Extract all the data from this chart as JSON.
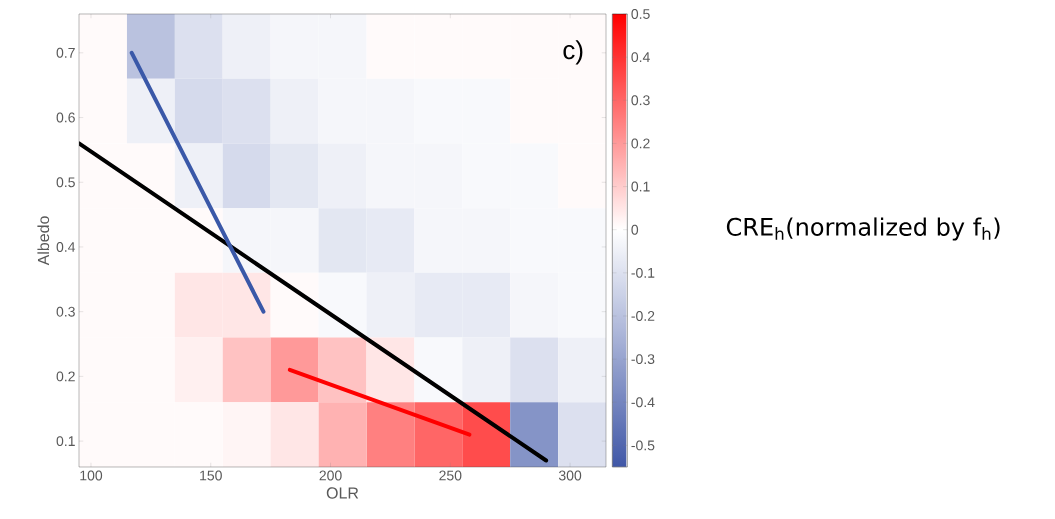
{
  "chart_data": {
    "type": "heatmap",
    "xlabel": "OLR",
    "ylabel": "Albedo",
    "clabel": "CRE$_{h}$(normalized by f$_{h}$)",
    "annotations": [
      "c)"
    ],
    "xlim": [
      95,
      315
    ],
    "ylim": [
      0.06,
      0.76
    ],
    "xticks": [
      100,
      150,
      200,
      250,
      300
    ],
    "yticks": [
      0.1,
      0.2,
      0.3,
      0.4,
      0.5,
      0.6,
      0.7
    ],
    "clim": [
      -0.55,
      0.5
    ],
    "cticks": [
      -0.5,
      -0.4,
      -0.3,
      -0.2,
      -0.1,
      0,
      0.1,
      0.2,
      0.3,
      0.4,
      0.5
    ],
    "cells": [
      [
        0.01,
        -0.2,
        -0.1,
        -0.05,
        -0.03,
        -0.03,
        0.01,
        0.01,
        0.01,
        0.01,
        0.01
      ],
      [
        0.01,
        -0.05,
        -0.12,
        -0.1,
        -0.05,
        -0.03,
        -0.03,
        -0.02,
        -0.02,
        0.01,
        0.01
      ],
      [
        0.01,
        0.01,
        -0.05,
        -0.12,
        -0.08,
        -0.05,
        -0.03,
        -0.03,
        -0.02,
        -0.02,
        0.01
      ],
      [
        0.01,
        0.01,
        0.01,
        -0.03,
        -0.03,
        -0.08,
        -0.07,
        -0.03,
        -0.03,
        -0.02,
        -0.02
      ],
      [
        0.01,
        0.01,
        0.05,
        0.05,
        0.01,
        -0.02,
        -0.05,
        -0.07,
        -0.07,
        -0.03,
        -0.02
      ],
      [
        0.01,
        0.01,
        0.03,
        0.12,
        0.2,
        0.12,
        0.05,
        -0.02,
        -0.05,
        -0.1,
        -0.05
      ],
      [
        0.01,
        0.01,
        0.01,
        0.02,
        0.05,
        0.15,
        0.25,
        0.3,
        0.35,
        -0.35,
        -0.1
      ]
    ],
    "series": [
      {
        "type": "line",
        "color": "#000000",
        "x": [
          95,
          290
        ],
        "values": [
          0.56,
          0.07
        ]
      },
      {
        "type": "line",
        "color": "#3a58a8",
        "x": [
          117,
          172
        ],
        "values": [
          0.7,
          0.3
        ]
      },
      {
        "type": "line",
        "color": "#ff0000",
        "x": [
          183,
          258
        ],
        "values": [
          0.21,
          0.11
        ]
      }
    ]
  }
}
